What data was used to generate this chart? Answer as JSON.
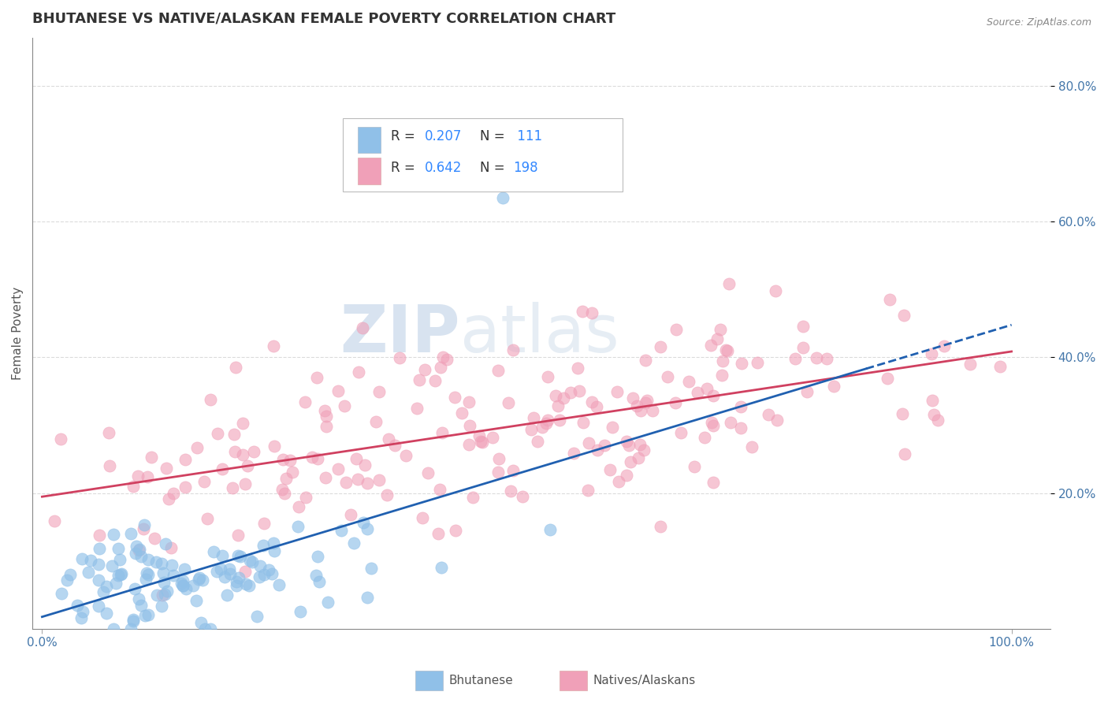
{
  "title": "BHUTANESE VS NATIVE/ALASKAN FEMALE POVERTY CORRELATION CHART",
  "source": "Source: ZipAtlas.com",
  "ylabel": "Female Poverty",
  "ytick_labels": [
    "20.0%",
    "40.0%",
    "60.0%",
    "80.0%"
  ],
  "ytick_positions": [
    0.2,
    0.4,
    0.6,
    0.8
  ],
  "color_blue": "#90c0e8",
  "color_pink": "#f0a0b8",
  "color_blue_line": "#2060b0",
  "color_pink_line": "#d04060",
  "label1": "Bhutanese",
  "label2": "Natives/Alaskans",
  "watermark_zip": "ZIP",
  "watermark_atlas": "atlas",
  "background_color": "#ffffff",
  "grid_color": "#cccccc",
  "title_color": "#333333",
  "legend_blue_R": "0.207",
  "legend_blue_N": "111",
  "legend_pink_R": "0.642",
  "legend_pink_N": "198",
  "R1": 0.207,
  "R2": 0.642,
  "N1": 111,
  "N2": 198,
  "seed": 42
}
